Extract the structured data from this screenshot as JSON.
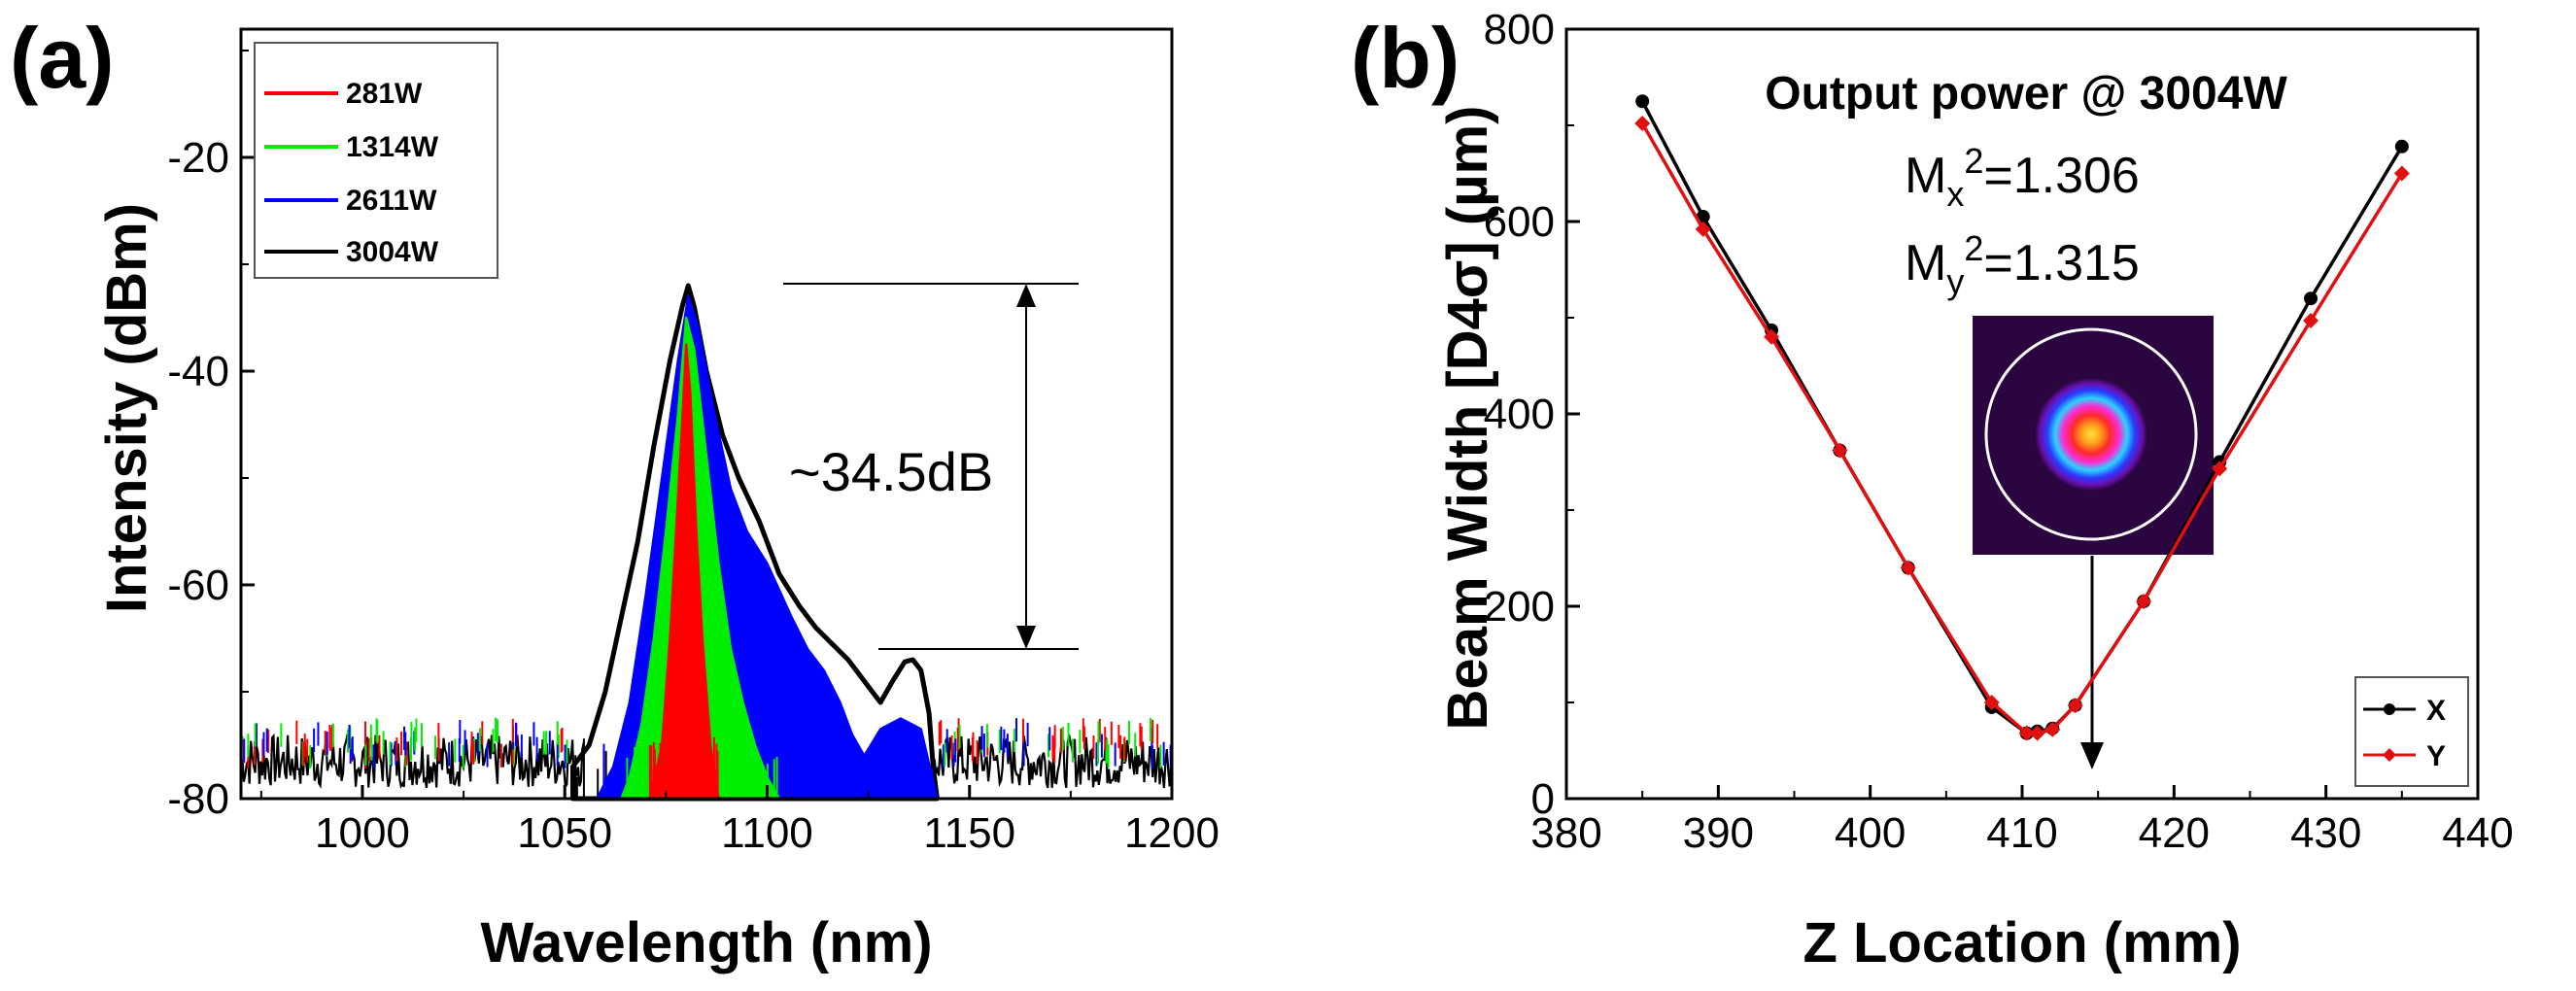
{
  "chart_data": [
    {
      "panel_label": "(a)",
      "type": "line",
      "title": "",
      "xlabel": "Wavelength (nm)",
      "ylabel": "Intensity (dBm)",
      "xlim": [
        970,
        1200
      ],
      "ylim": [
        -80,
        -8
      ],
      "xticks": [
        1000,
        1050,
        1100,
        1150,
        1200
      ],
      "yticks": [
        -80,
        -60,
        -40,
        -20
      ],
      "legend_position": "top-left",
      "annotation": "~34.5dB",
      "series": [
        {
          "name": "281W",
          "color": "#ff0000",
          "x": [
            1071,
            1074,
            1076,
            1077.5,
            1079,
            1080,
            1081,
            1082.5,
            1084,
            1086,
            1088
          ],
          "y": [
            -80,
            -75,
            -65,
            -55,
            -45,
            -37.5,
            -42,
            -55,
            -65,
            -75,
            -80
          ]
        },
        {
          "name": "1314W",
          "color": "#00ee00",
          "x": [
            1064,
            1066,
            1069,
            1072,
            1075,
            1078,
            1080,
            1082,
            1085,
            1088,
            1091,
            1094,
            1097,
            1100,
            1103
          ],
          "y": [
            -80,
            -78,
            -73,
            -65,
            -55,
            -44,
            -35,
            -38,
            -48,
            -58,
            -66,
            -71,
            -75,
            -78,
            -80
          ]
        },
        {
          "name": "2611W",
          "color": "#0000ff",
          "x": [
            1058,
            1062,
            1066,
            1070,
            1074,
            1078,
            1080.5,
            1083,
            1087,
            1091,
            1095,
            1100,
            1106,
            1110,
            1114,
            1118,
            1121,
            1124,
            1128,
            1133,
            1138,
            1142
          ],
          "y": [
            -80,
            -77,
            -71,
            -61,
            -50,
            -39,
            -33,
            -36,
            -44,
            -51,
            -55,
            -58,
            -63,
            -66,
            -68,
            -71,
            -74,
            -76,
            -73.5,
            -72.5,
            -73.5,
            -80
          ]
        },
        {
          "name": "3004W",
          "color": "#000000",
          "x": [
            1052,
            1056,
            1060,
            1064,
            1068,
            1072,
            1076,
            1079,
            1080.5,
            1082,
            1085,
            1089,
            1093,
            1098,
            1103,
            1108,
            1112,
            1116,
            1120,
            1124,
            1128,
            1131,
            1134,
            1136,
            1138,
            1140,
            1141,
            1142
          ],
          "y": [
            -77,
            -75,
            -70,
            -63,
            -56,
            -47,
            -39,
            -34,
            -32,
            -34,
            -40,
            -46,
            -50,
            -54,
            -59,
            -62,
            -64,
            -65.5,
            -67,
            -69,
            -71,
            -69,
            -67.2,
            -67,
            -68,
            -72,
            -77,
            -80
          ]
        }
      ],
      "noise_floor": {
        "x_min": 970,
        "x_max": 1200,
        "level": -76.5,
        "spread": 2.5
      }
    },
    {
      "panel_label": "(b)",
      "type": "line",
      "title": "Output power @ 3004W",
      "xlabel": "Z Location (mm)",
      "ylabel": "Beam Width [D4σ] (µm)",
      "xlim": [
        380,
        440
      ],
      "ylim": [
        0,
        800
      ],
      "xticks": [
        380,
        390,
        400,
        410,
        420,
        430,
        440
      ],
      "yticks": [
        0,
        200,
        400,
        600,
        800
      ],
      "legend_position": "bottom-right",
      "mx2_label": "Mx²=1.306",
      "my2_label": "My²=1.315",
      "series": [
        {
          "name": "X",
          "color": "#000000",
          "x": [
            385,
            389,
            393.5,
            398,
            402.5,
            408,
            410.3,
            411,
            412,
            413.5,
            418,
            423,
            429,
            435
          ],
          "y": [
            725,
            605,
            487,
            362,
            240,
            95,
            68,
            70,
            73,
            97,
            205,
            350,
            520,
            678
          ]
        },
        {
          "name": "Y",
          "color": "#e01010",
          "x": [
            385,
            389,
            393.5,
            398,
            402.5,
            408,
            410.3,
            411,
            412,
            413.5,
            418,
            423,
            429,
            435
          ],
          "y": [
            702,
            592,
            480,
            362,
            240,
            100,
            68,
            68,
            72,
            97,
            205,
            343,
            497,
            650
          ]
        }
      ]
    }
  ]
}
